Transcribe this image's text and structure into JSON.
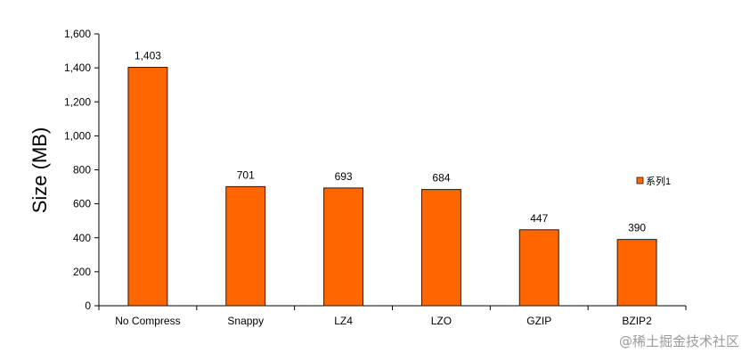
{
  "chart_data": {
    "type": "bar",
    "categories": [
      "No Compress",
      "Snappy",
      "LZ4",
      "LZO",
      "GZIP",
      "BZIP2"
    ],
    "series": [
      {
        "name": "系列1",
        "values": [
          1403,
          701,
          693,
          684,
          447,
          390
        ]
      }
    ],
    "data_labels": [
      "1,403",
      "701",
      "693",
      "684",
      "447",
      "390"
    ],
    "ylabel": "Size (MB)",
    "ylim": [
      0,
      1600
    ],
    "yticks": [
      0,
      200,
      400,
      600,
      800,
      1000,
      1200,
      1400,
      1600
    ],
    "ytick_labels": [
      "0",
      "200",
      "400",
      "600",
      "800",
      "1,000",
      "1,200",
      "1,400",
      "1,600"
    ],
    "grid": false,
    "legend_position": "right",
    "bar_color": "#FF6600",
    "bar_edge_color": "#1a1a1a"
  },
  "watermark": "@稀土掘金技术社区"
}
